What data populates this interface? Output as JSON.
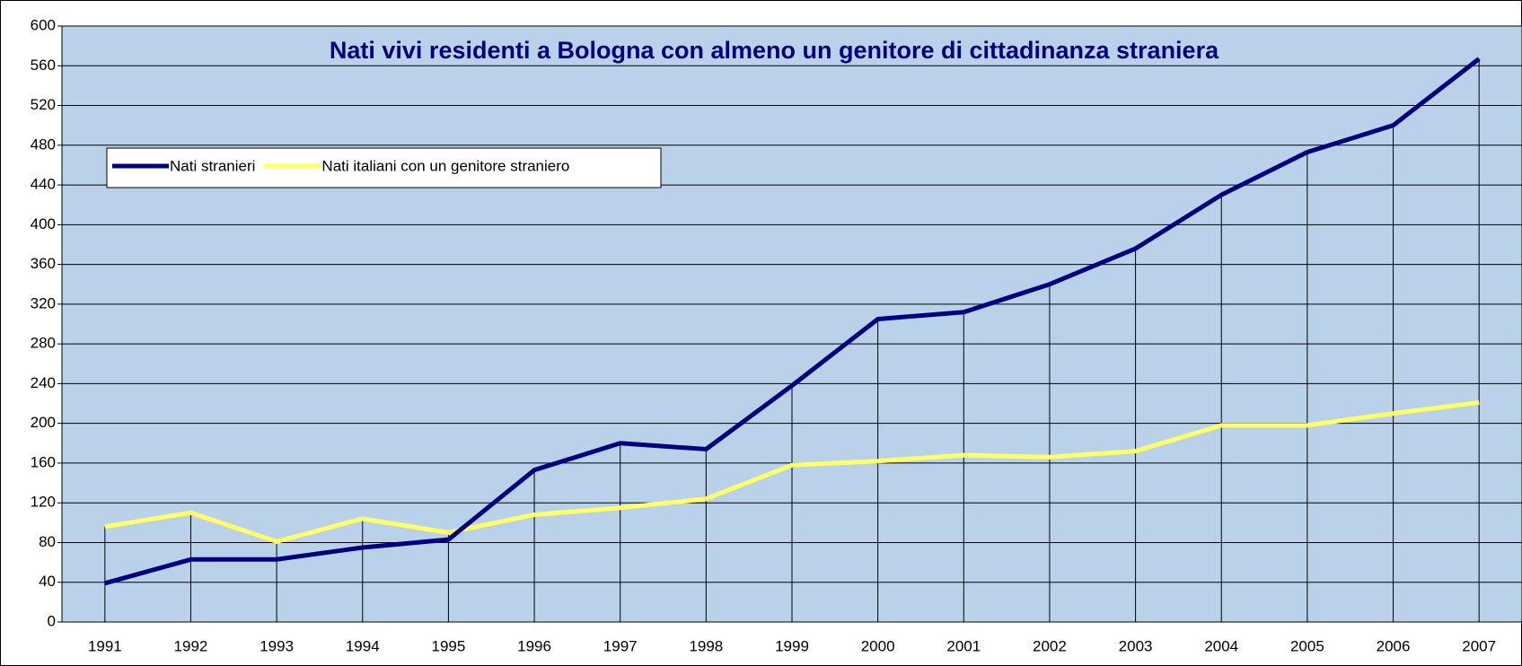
{
  "chart_data": {
    "type": "line",
    "title": "Nati vivi residenti a Bologna con almeno un genitore di cittadinanza straniera",
    "categories": [
      "1991",
      "1992",
      "1993",
      "1994",
      "1995",
      "1996",
      "1997",
      "1998",
      "1999",
      "2000",
      "2001",
      "2002",
      "2003",
      "2004",
      "2005",
      "2006",
      "2007"
    ],
    "series": [
      {
        "name": "Nati stranieri",
        "color": "#000080",
        "values": [
          39,
          63,
          63,
          75,
          83,
          153,
          180,
          174,
          238,
          305,
          312,
          340,
          376,
          430,
          473,
          500,
          567
        ]
      },
      {
        "name": "Nati italiani con un genitore straniero",
        "color": "#FFFF66",
        "values": [
          96,
          110,
          81,
          104,
          90,
          108,
          115,
          124,
          158,
          162,
          168,
          166,
          172,
          198,
          198,
          210,
          221
        ]
      }
    ],
    "ylim": [
      0,
      600
    ],
    "yticks": [
      0,
      40,
      80,
      120,
      160,
      200,
      240,
      280,
      320,
      360,
      400,
      440,
      480,
      520,
      560,
      600
    ],
    "grid": true,
    "drop_lines": true,
    "legend": "upper left"
  }
}
